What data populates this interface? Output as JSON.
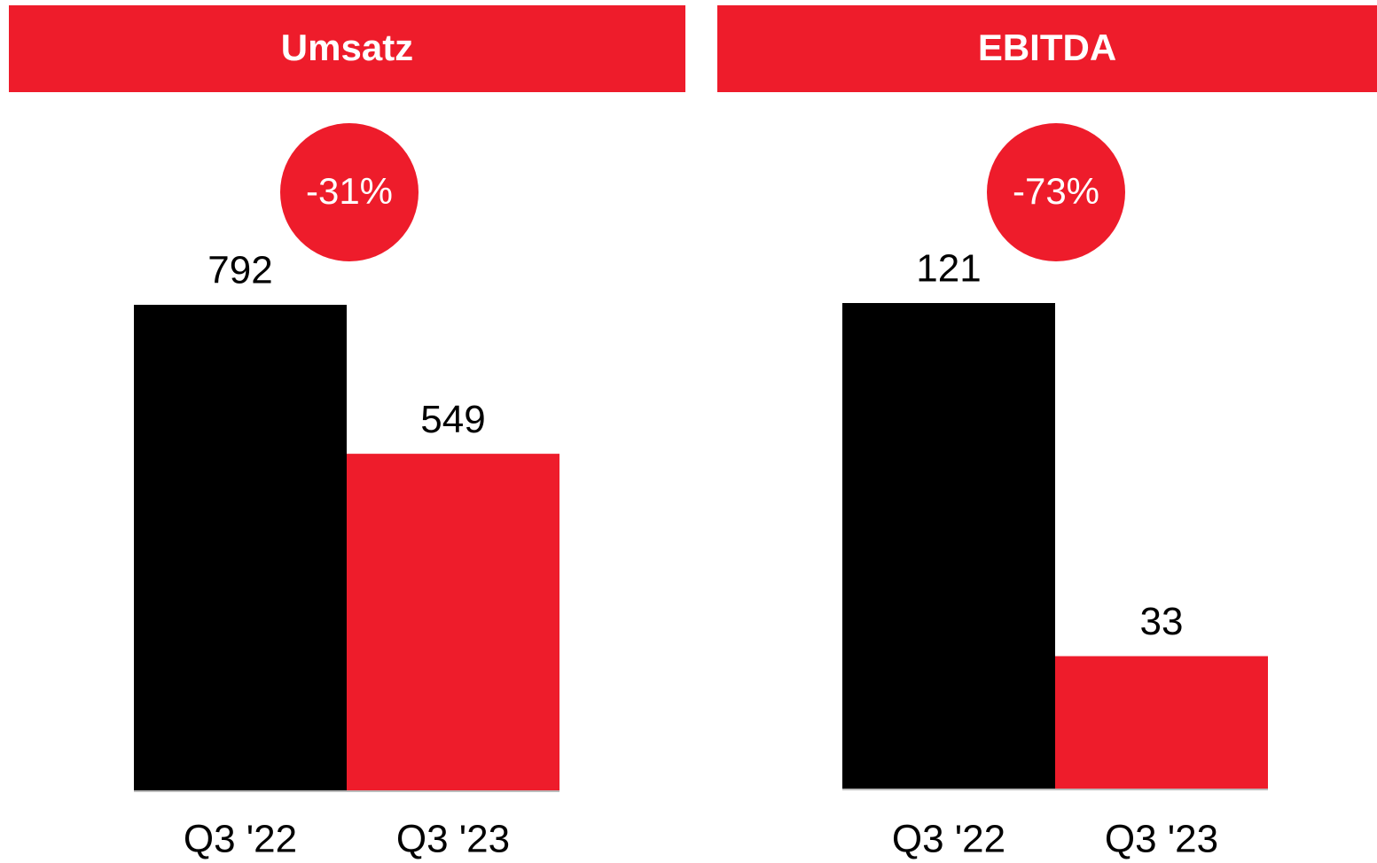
{
  "chart_data": [
    {
      "type": "bar",
      "title": "Umsatz",
      "annotation": "-31%",
      "categories": [
        "Q3 '22",
        "Q3 '23"
      ],
      "values": [
        792,
        549
      ],
      "colors": [
        "#000000",
        "#ee1c2b"
      ]
    },
    {
      "type": "bar",
      "title": "EBITDA",
      "annotation": "-73%",
      "categories": [
        "Q3 '22",
        "Q3 '23"
      ],
      "values": [
        121,
        33
      ],
      "colors": [
        "#000000",
        "#ee1c2b"
      ]
    }
  ]
}
